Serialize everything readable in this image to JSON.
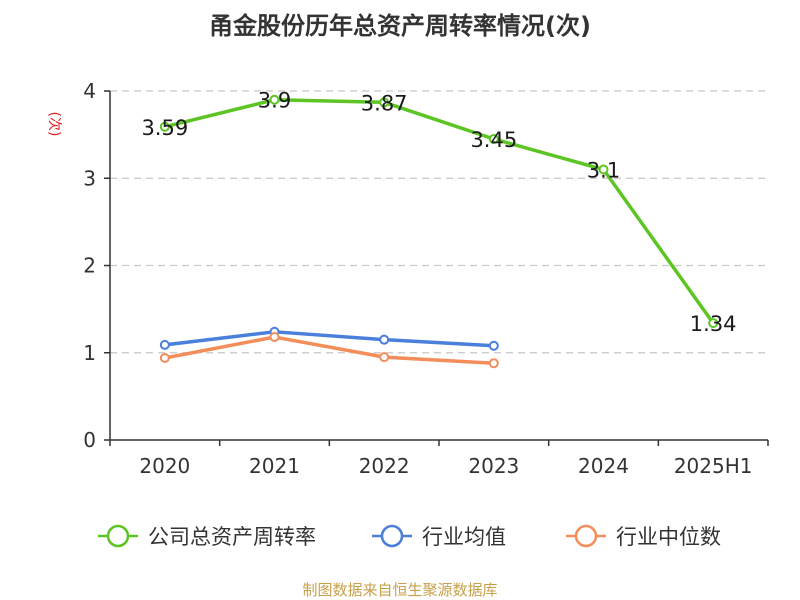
{
  "chart_data": {
    "type": "line",
    "title": "甬金股份历年总资产周转率情况(次)",
    "ylabel": "(次)",
    "categories": [
      "2020",
      "2021",
      "2022",
      "2023",
      "2024",
      "2025H1"
    ],
    "yticks": [
      "0",
      "1",
      "2",
      "3",
      "4"
    ],
    "ylim": [
      0,
      4
    ],
    "grid": true,
    "legend_position": "bottom",
    "series": [
      {
        "name": "公司总资产周转率",
        "color": "#5cc524",
        "values": [
          3.59,
          3.9,
          3.87,
          3.45,
          3.1,
          1.34
        ],
        "labels": [
          "3.59",
          "3.9",
          "3.87",
          "3.45",
          "3.1",
          "1.34"
        ]
      },
      {
        "name": "行业均值",
        "color": "#4a7fdb",
        "values": [
          1.09,
          1.24,
          1.15,
          1.08,
          null,
          null
        ]
      },
      {
        "name": "行业中位数",
        "color": "#f38d5a",
        "values": [
          0.94,
          1.18,
          0.95,
          0.88,
          null,
          null
        ]
      }
    ]
  },
  "source_text": "制图数据来自恒生聚源数据库"
}
